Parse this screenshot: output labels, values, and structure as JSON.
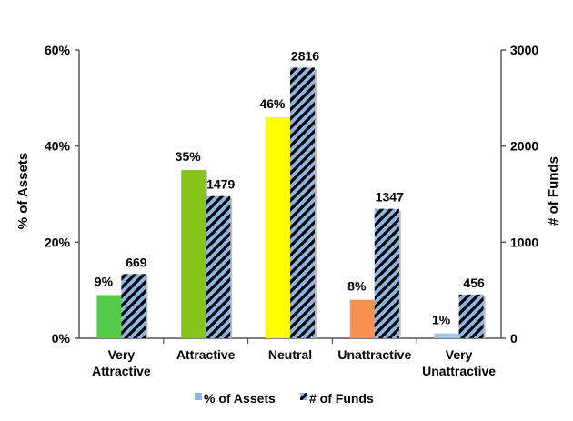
{
  "chart_data": {
    "type": "bar",
    "categories": [
      [
        "Very",
        "Attractive"
      ],
      [
        "Attractive"
      ],
      [
        "Neutral"
      ],
      [
        "Unattractive"
      ],
      [
        "Very",
        "Unattractive"
      ]
    ],
    "series": [
      {
        "name": "% of Assets",
        "axis": "left",
        "values": [
          9,
          35,
          46,
          8,
          1
        ],
        "labels": [
          "9%",
          "35%",
          "46%",
          "8%",
          "1%"
        ],
        "colors": [
          "#55c94a",
          "#86c41a",
          "#ffff00",
          "#f79050",
          "#a4c3e6"
        ]
      },
      {
        "name": "# of Funds",
        "axis": "right",
        "values": [
          669,
          1479,
          2816,
          1347,
          456
        ],
        "labels": [
          "669",
          "1479",
          "2816",
          "1347",
          "456"
        ],
        "pattern": "diagonal stripes",
        "colors": [
          "#8fb4e3",
          "#000000"
        ]
      }
    ],
    "ylabel_left": "% of Assets",
    "ylabel_right": "# of Funds",
    "ylim_left": [
      0,
      60
    ],
    "ylim_right": [
      0,
      3000
    ],
    "yticks_left": [
      "0%",
      "20%",
      "40%",
      "60%"
    ],
    "yticks_right": [
      "0",
      "1000",
      "2000",
      "3000"
    ],
    "grid": false,
    "legend": "bottom"
  }
}
